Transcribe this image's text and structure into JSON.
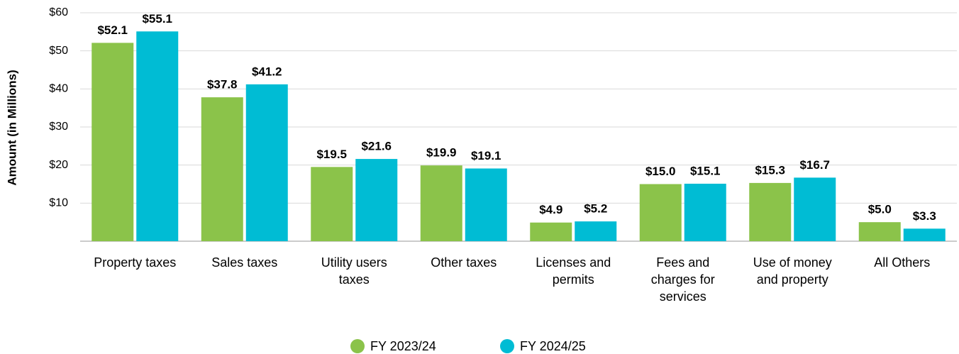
{
  "chart_data": {
    "type": "bar",
    "y_axis_label": "Amount (in Millions)",
    "categories": [
      "Property taxes",
      "Sales taxes",
      "Utility users taxes",
      "Other taxes",
      "Licenses and permits",
      "Fees and charges for services",
      "Use of money and property",
      "All Others"
    ],
    "series": [
      {
        "name": "FY 2023/24",
        "color": "#8bc34a",
        "values": [
          52.1,
          37.8,
          19.5,
          19.9,
          4.9,
          15.0,
          15.3,
          5.0
        ],
        "value_labels": [
          "$52.1",
          "$37.8",
          "$19.5",
          "$19.9",
          "$4.9",
          "$15.0",
          "$15.3",
          "$5.0"
        ]
      },
      {
        "name": "FY 2024/25",
        "color": "#00bcd4",
        "values": [
          55.1,
          41.2,
          21.6,
          19.1,
          5.2,
          15.1,
          16.7,
          3.3
        ],
        "value_labels": [
          "$55.1",
          "$41.2",
          "$21.6",
          "$19.1",
          "$5.2",
          "$15.1",
          "$16.7",
          "$3.3"
        ]
      }
    ],
    "ylim": [
      0,
      60
    ],
    "yticks": [
      {
        "value": 10,
        "label": "$10"
      },
      {
        "value": 20,
        "label": "$20"
      },
      {
        "value": 30,
        "label": "$30"
      },
      {
        "value": 40,
        "label": "$40"
      },
      {
        "value": 50,
        "label": "$50"
      },
      {
        "value": 60,
        "label": "$60"
      }
    ],
    "grid": true
  }
}
